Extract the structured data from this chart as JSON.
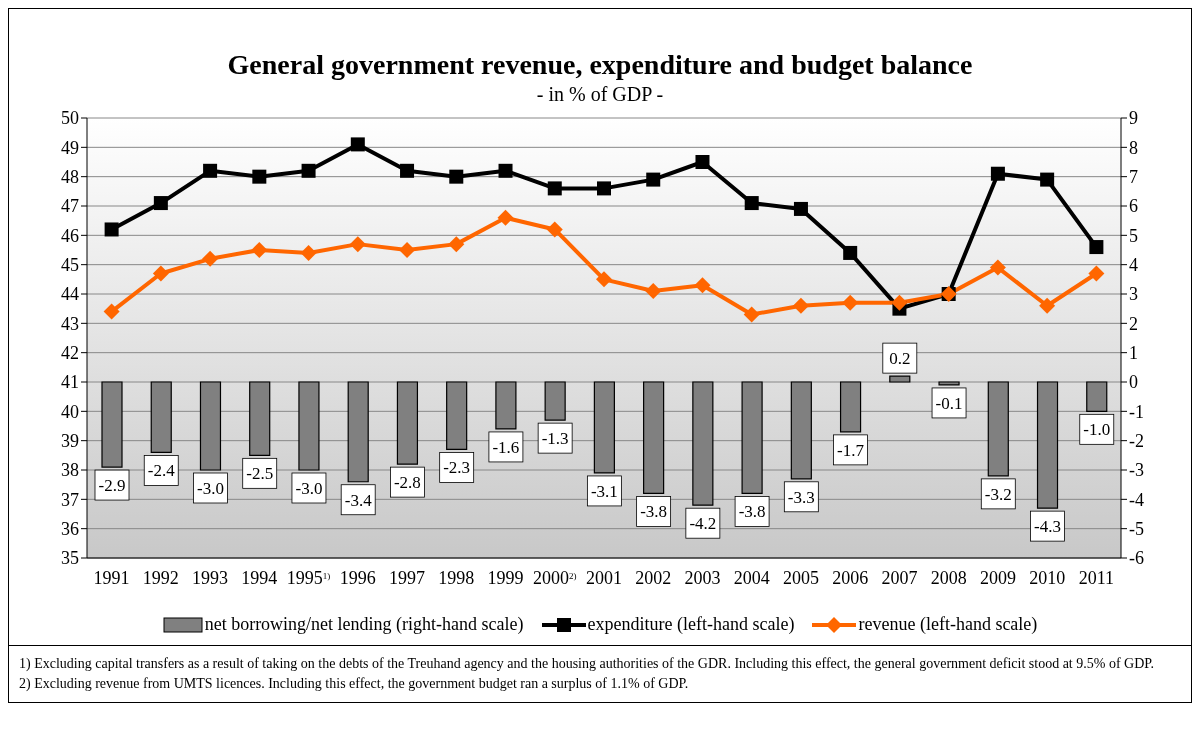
{
  "chart_data": {
    "type": "line",
    "title": "General government revenue, expenditure and budget balance",
    "subtitle": "- in % of GDP -",
    "categories": [
      "1991",
      "1992",
      "1993",
      "1994",
      "1995$^{1)}$",
      "1996",
      "1997",
      "1998",
      "1999",
      "2000$^{2)}$",
      "2001",
      "2002",
      "2003",
      "2004",
      "2005",
      "2006",
      "2007",
      "2008",
      "2009",
      "2010",
      "2011"
    ],
    "ylim": [
      35,
      50
    ],
    "yticks": [
      35,
      36,
      37,
      38,
      39,
      40,
      41,
      42,
      43,
      44,
      45,
      46,
      47,
      48,
      49,
      50
    ],
    "y2lim": [
      -6,
      9
    ],
    "y2ticks": [
      -6,
      -5,
      -4,
      -3,
      -2,
      -1,
      0,
      1,
      2,
      3,
      4,
      5,
      6,
      7,
      8,
      9
    ],
    "grid": "y",
    "legend": "bottom",
    "series": [
      {
        "name": "net borrowing/net lending (right-hand scale)",
        "type": "bar",
        "axis": "y2",
        "color": "#808080",
        "values": [
          -2.9,
          -2.4,
          -3.0,
          -2.5,
          -3.0,
          -3.4,
          -2.8,
          -2.3,
          -1.6,
          -1.3,
          -3.1,
          -3.8,
          -4.2,
          -3.8,
          -3.3,
          -1.7,
          0.2,
          -0.1,
          -3.2,
          -4.3,
          -1.0
        ],
        "value_labels": [
          "-2.9",
          "-2.4",
          "-3.0",
          "-2.5",
          "-3.0",
          "-3.4",
          "-2.8",
          "-2.3",
          "-1.6",
          "-1.3",
          "-3.1",
          "-3.8",
          "-4.2",
          "-3.8",
          "-3.3",
          "-1.7",
          "0.2",
          "-0.1",
          "-3.2",
          "-4.3",
          "-1.0"
        ]
      },
      {
        "name": "expenditure (left-hand scale)",
        "color": "#000000",
        "marker": "square",
        "values": [
          46.2,
          47.1,
          48.2,
          48.0,
          48.2,
          49.1,
          48.2,
          48.0,
          48.2,
          47.6,
          47.6,
          47.9,
          48.5,
          47.1,
          46.9,
          45.4,
          43.5,
          44.0,
          48.1,
          47.9,
          45.6
        ]
      },
      {
        "name": "revenue (left-hand scale)",
        "color": "#ff6600",
        "marker": "diamond",
        "values": [
          43.4,
          44.7,
          45.2,
          45.5,
          45.4,
          45.7,
          45.5,
          45.7,
          46.6,
          46.2,
          44.5,
          44.1,
          44.3,
          43.3,
          43.6,
          43.7,
          43.7,
          44.0,
          44.9,
          43.6,
          44.7
        ]
      }
    ],
    "annotations": [
      "1) Excluding capital transfers as a result of taking on the debts of the Treuhand agency and the housing authorities of the GDR. Including this effect, the general government deficit stood at 9.5% of GDP.",
      "2) Excluding revenue from UMTS licences. Including this effect, the government budget ran a surplus of 1.1% of GDP."
    ]
  }
}
